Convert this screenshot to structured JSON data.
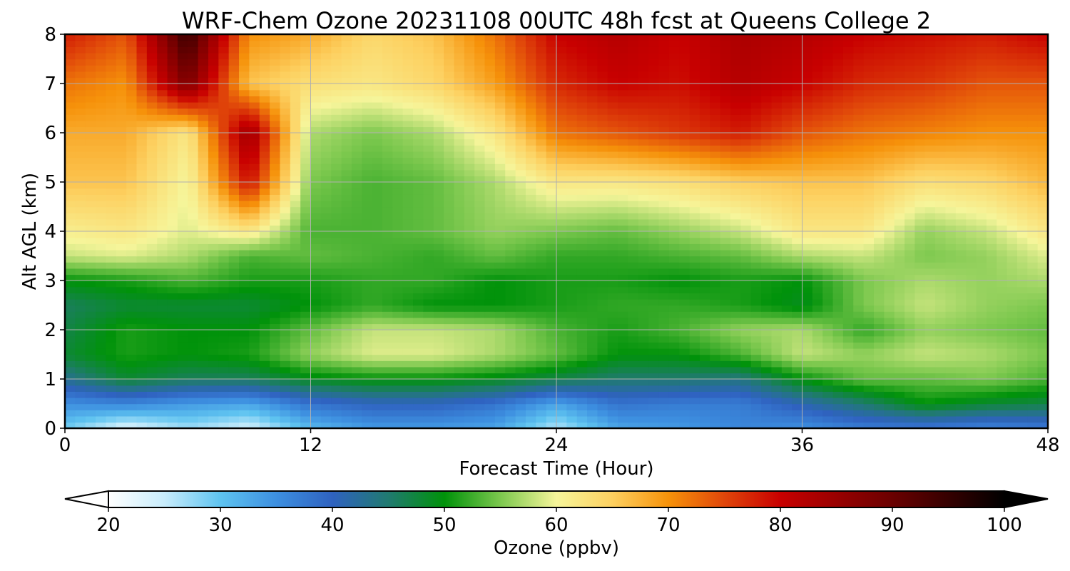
{
  "chart_data": {
    "type": "heatmap",
    "title": "WRF-Chem Ozone  20231108 00UTC 48h fcst at Queens College 2",
    "xlabel": "Forecast Time (Hour)",
    "ylabel": "Alt AGL (km)",
    "xlim": [
      0,
      48
    ],
    "ylim": [
      0,
      8
    ],
    "xticks": [
      0,
      12,
      24,
      36,
      48
    ],
    "yticks": [
      0,
      1,
      2,
      3,
      4,
      5,
      6,
      7,
      8
    ],
    "grid": true,
    "colorbar": {
      "label": "Ozone  (ppbv)",
      "range": [
        20,
        100
      ],
      "ticks": [
        20,
        30,
        40,
        50,
        60,
        70,
        80,
        90,
        100
      ],
      "extend": "both",
      "stops": [
        {
          "v": 20,
          "c": "#ffffff"
        },
        {
          "v": 25,
          "c": "#c8ecfb"
        },
        {
          "v": 30,
          "c": "#5ec3f0"
        },
        {
          "v": 35,
          "c": "#3d8fe0"
        },
        {
          "v": 40,
          "c": "#2f62c0"
        },
        {
          "v": 45,
          "c": "#207a70"
        },
        {
          "v": 50,
          "c": "#00920a"
        },
        {
          "v": 55,
          "c": "#7cc84e"
        },
        {
          "v": 60,
          "c": "#f6f59a"
        },
        {
          "v": 65,
          "c": "#fdd060"
        },
        {
          "v": 70,
          "c": "#f6920a"
        },
        {
          "v": 75,
          "c": "#e0460a"
        },
        {
          "v": 80,
          "c": "#c80000"
        },
        {
          "v": 90,
          "c": "#6a0000"
        },
        {
          "v": 100,
          "c": "#000000"
        }
      ]
    },
    "times": [
      0,
      3,
      6,
      9,
      12,
      15,
      18,
      21,
      24,
      27,
      30,
      33,
      36,
      39,
      42,
      45,
      48
    ],
    "altitudes": [
      0,
      0.5,
      1,
      1.5,
      2,
      2.5,
      3,
      3.5,
      4,
      5,
      6,
      7,
      8
    ],
    "values": [
      [
        29,
        23,
        27,
        24,
        31,
        34,
        34,
        33,
        26,
        33,
        34,
        36,
        35,
        37,
        37,
        36,
        37
      ],
      [
        35,
        36,
        34,
        33,
        38,
        40,
        40,
        38,
        33,
        38,
        37,
        37,
        41,
        45,
        50,
        48,
        47
      ],
      [
        43,
        48,
        46,
        46,
        49,
        50,
        50,
        49,
        47,
        45,
        45,
        44,
        50,
        54,
        54,
        55,
        53
      ],
      [
        48,
        51,
        50,
        51,
        56,
        59,
        59,
        57,
        54,
        50,
        50,
        53,
        58,
        56,
        58,
        57,
        55
      ],
      [
        47,
        51,
        50,
        50,
        54,
        58,
        58,
        57,
        53,
        51,
        53,
        56,
        57,
        52,
        56,
        55,
        54
      ],
      [
        46,
        48,
        48,
        48,
        50,
        52,
        50,
        50,
        51,
        52,
        52,
        51,
        49,
        55,
        58,
        56,
        55
      ],
      [
        50,
        51,
        53,
        51,
        51,
        52,
        52,
        50,
        51,
        51,
        50,
        51,
        50,
        55,
        57,
        56,
        57
      ],
      [
        58,
        59,
        57,
        53,
        54,
        53,
        52,
        54,
        52,
        52,
        53,
        54,
        57,
        58,
        55,
        56,
        59
      ],
      [
        61,
        62,
        59,
        62,
        53,
        53,
        54,
        56,
        55,
        54,
        56,
        58,
        62,
        62,
        56,
        58,
        62
      ],
      [
        66,
        66,
        60,
        79,
        55,
        53,
        54,
        57,
        62,
        62,
        63,
        65,
        66,
        66,
        63,
        64,
        67
      ],
      [
        68,
        68,
        62,
        85,
        57,
        55,
        57,
        62,
        72,
        74,
        76,
        78,
        74,
        72,
        71,
        70,
        70
      ],
      [
        72,
        70,
        88,
        66,
        63,
        62,
        64,
        69,
        77,
        80,
        79,
        82,
        80,
        77,
        76,
        74,
        74
      ],
      [
        78,
        74,
        95,
        70,
        68,
        64,
        66,
        72,
        80,
        82,
        80,
        83,
        82,
        80,
        79,
        78,
        80
      ]
    ]
  }
}
